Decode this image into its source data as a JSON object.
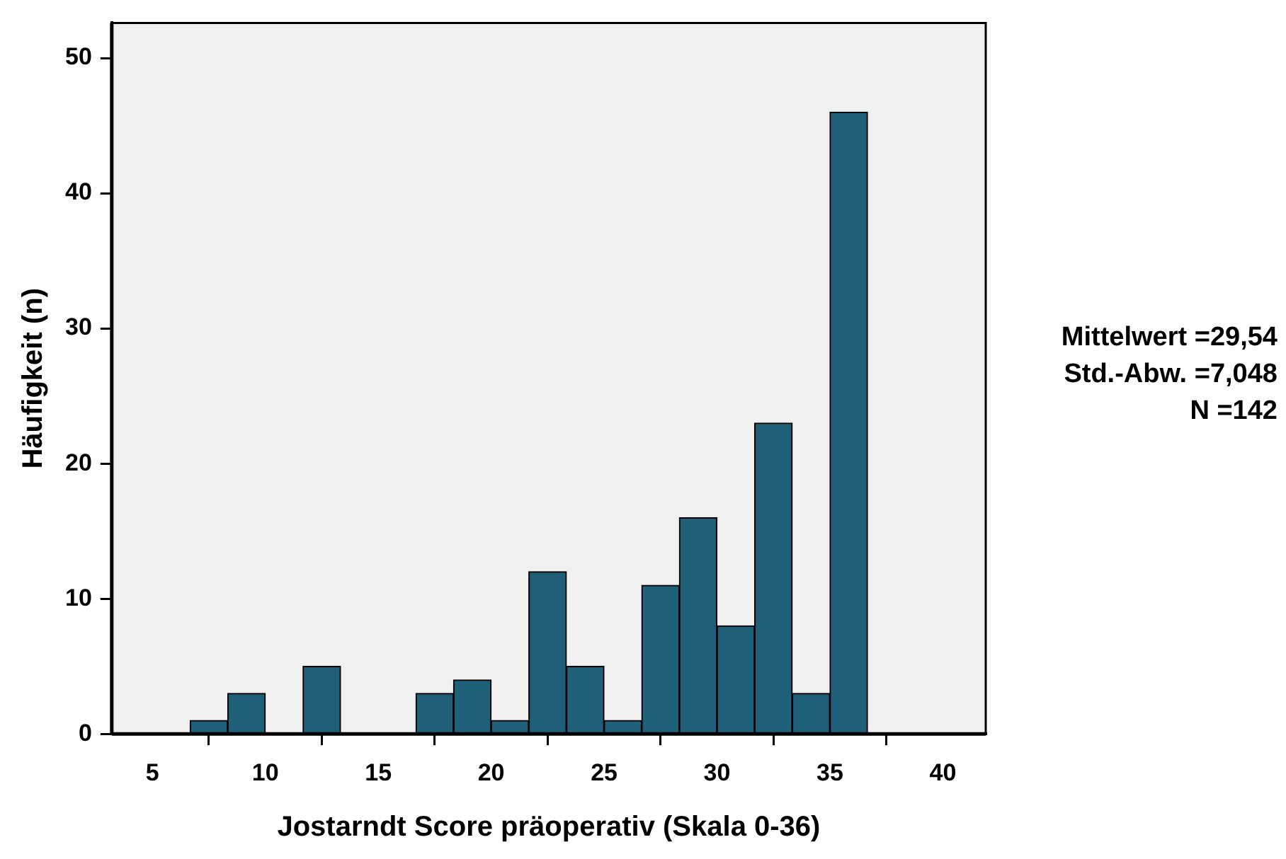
{
  "chart_data": {
    "type": "histogram",
    "xlabel": "Jostarndt Score präoperativ (Skala 0-36)",
    "ylabel": "Häufigkeit (n)",
    "bins": [
      6.667,
      8.333,
      10,
      11.667,
      13.333,
      15,
      16.667,
      18.333,
      20,
      21.667,
      23.333,
      25,
      26.667,
      28.333,
      30,
      31.667,
      33.333,
      35,
      36.667
    ],
    "values": [
      1,
      3,
      0,
      5,
      0,
      0,
      3,
      4,
      1,
      12,
      5,
      1,
      11,
      16,
      8,
      23,
      3,
      46
    ],
    "color": "#1f5f78",
    "xlim": [
      3.2,
      41.9
    ],
    "xticks": [
      5,
      10,
      15,
      20,
      25,
      30,
      35,
      40
    ],
    "ylim": [
      0,
      52.6
    ],
    "yticks": [
      0,
      10,
      20,
      30,
      40,
      50
    ],
    "grid": false,
    "legend": false,
    "annotations": [
      "Mittelwert =29,54",
      "Std.-Abw. =7,048",
      "N =142"
    ]
  }
}
